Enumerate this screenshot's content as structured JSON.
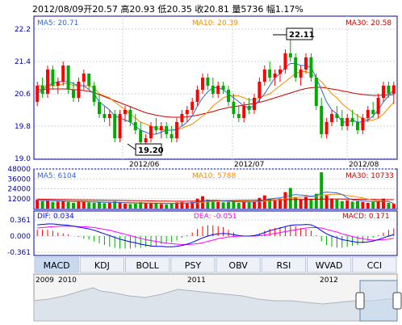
{
  "header": {
    "date": "2012/08/09",
    "open_label": "开",
    "open": "20.57",
    "high_label": "高",
    "high": "20.93",
    "low_label": "低",
    "low": "20.35",
    "close_label": "收",
    "close": "20.81",
    "volume_label": "量",
    "volume": "5736",
    "change_label": "幅",
    "change": "1.17%"
  },
  "price_panel": {
    "ma5_label": "MA5: 20.71",
    "ma10_label": "MA10: 20.39",
    "ma30_label": "MA30: 20.58",
    "y_ticks": [
      "22.2",
      "21.4",
      "20.6",
      "19.8",
      "19.0"
    ],
    "high_callout": "22.11",
    "low_callout": "19.20",
    "x_labels": [
      "2012/06",
      "2012/07",
      "2012/08"
    ]
  },
  "volume_panel": {
    "ma5_label": "MA5: 6104",
    "ma10_label": "MA10: 5788",
    "ma30_label": "MA30: 10733",
    "y_ticks": [
      "48000",
      "36000",
      "24000",
      "12000"
    ]
  },
  "macd_panel": {
    "dif_label": "DIF: 0.034",
    "dea_label": "DEA: -0.051",
    "macd_label": "MACD: 0.171",
    "y_ticks": [
      "0.361",
      "0.000",
      "-0.361"
    ]
  },
  "tabs": [
    "MACD",
    "KDJ",
    "BOLL",
    "PSY",
    "OBV",
    "RSI",
    "WVAD",
    "CCI"
  ],
  "active_tab": 0,
  "navigator": {
    "labels": [
      "2009",
      "2010",
      "2011",
      "2012"
    ]
  },
  "colors": {
    "up": "#ff0000",
    "down": "#00aa00",
    "ma5": "#3366cc",
    "ma10": "#ff8800",
    "ma30": "#cc0000",
    "dif": "#0000ff",
    "dea": "#ff00ff",
    "axis": "#0000aa"
  },
  "chart_data": [
    {
      "type": "candlestick",
      "title": "",
      "ylim": [
        19.0,
        22.2
      ],
      "candles": [
        {
          "o": 20.4,
          "h": 20.9,
          "l": 20.3,
          "c": 20.8
        },
        {
          "o": 20.8,
          "h": 21.0,
          "l": 20.5,
          "c": 20.6
        },
        {
          "o": 20.6,
          "h": 21.3,
          "l": 20.5,
          "c": 21.2
        },
        {
          "o": 21.2,
          "h": 21.3,
          "l": 20.7,
          "c": 20.8
        },
        {
          "o": 20.8,
          "h": 21.0,
          "l": 20.6,
          "c": 20.9
        },
        {
          "o": 20.9,
          "h": 21.4,
          "l": 20.8,
          "c": 21.3
        },
        {
          "o": 21.3,
          "h": 21.3,
          "l": 20.6,
          "c": 20.7
        },
        {
          "o": 20.7,
          "h": 20.9,
          "l": 20.4,
          "c": 20.5
        },
        {
          "o": 20.5,
          "h": 21.0,
          "l": 20.4,
          "c": 20.9
        },
        {
          "o": 20.9,
          "h": 21.2,
          "l": 20.7,
          "c": 21.1
        },
        {
          "o": 21.1,
          "h": 21.1,
          "l": 20.7,
          "c": 20.8
        },
        {
          "o": 20.8,
          "h": 20.9,
          "l": 20.3,
          "c": 20.4
        },
        {
          "o": 20.4,
          "h": 20.6,
          "l": 20.0,
          "c": 20.1
        },
        {
          "o": 20.1,
          "h": 20.3,
          "l": 19.9,
          "c": 20.0
        },
        {
          "o": 20.0,
          "h": 20.2,
          "l": 19.8,
          "c": 20.1
        },
        {
          "o": 20.1,
          "h": 20.2,
          "l": 19.4,
          "c": 19.5
        },
        {
          "o": 19.5,
          "h": 20.2,
          "l": 19.4,
          "c": 20.1
        },
        {
          "o": 20.1,
          "h": 20.3,
          "l": 19.9,
          "c": 20.2
        },
        {
          "o": 20.2,
          "h": 20.3,
          "l": 19.8,
          "c": 19.9
        },
        {
          "o": 19.9,
          "h": 20.1,
          "l": 19.6,
          "c": 19.7
        },
        {
          "o": 19.7,
          "h": 19.9,
          "l": 19.3,
          "c": 19.4
        },
        {
          "o": 19.4,
          "h": 19.6,
          "l": 19.2,
          "c": 19.5
        },
        {
          "o": 19.5,
          "h": 19.9,
          "l": 19.4,
          "c": 19.8
        },
        {
          "o": 19.8,
          "h": 20.0,
          "l": 19.6,
          "c": 19.7
        },
        {
          "o": 19.7,
          "h": 19.9,
          "l": 19.5,
          "c": 19.8
        },
        {
          "o": 19.8,
          "h": 19.9,
          "l": 19.5,
          "c": 19.6
        },
        {
          "o": 19.6,
          "h": 19.8,
          "l": 19.4,
          "c": 19.5
        },
        {
          "o": 19.5,
          "h": 20.0,
          "l": 19.4,
          "c": 19.9
        },
        {
          "o": 19.9,
          "h": 20.2,
          "l": 19.8,
          "c": 20.1
        },
        {
          "o": 20.1,
          "h": 20.3,
          "l": 19.9,
          "c": 20.2
        },
        {
          "o": 20.2,
          "h": 20.5,
          "l": 20.1,
          "c": 20.4
        },
        {
          "o": 20.4,
          "h": 20.8,
          "l": 20.3,
          "c": 20.7
        },
        {
          "o": 20.7,
          "h": 21.1,
          "l": 20.6,
          "c": 21.0
        },
        {
          "o": 21.0,
          "h": 21.1,
          "l": 20.7,
          "c": 20.8
        },
        {
          "o": 20.8,
          "h": 21.0,
          "l": 20.5,
          "c": 20.6
        },
        {
          "o": 20.6,
          "h": 20.9,
          "l": 20.5,
          "c": 20.8
        },
        {
          "o": 20.8,
          "h": 20.9,
          "l": 20.6,
          "c": 20.7
        },
        {
          "o": 20.7,
          "h": 20.8,
          "l": 20.3,
          "c": 20.4
        },
        {
          "o": 20.4,
          "h": 20.6,
          "l": 20.0,
          "c": 20.1
        },
        {
          "o": 20.1,
          "h": 20.3,
          "l": 19.9,
          "c": 20.0
        },
        {
          "o": 20.0,
          "h": 20.4,
          "l": 19.9,
          "c": 20.3
        },
        {
          "o": 20.3,
          "h": 20.5,
          "l": 20.1,
          "c": 20.2
        },
        {
          "o": 20.2,
          "h": 20.6,
          "l": 20.1,
          "c": 20.5
        },
        {
          "o": 20.5,
          "h": 21.0,
          "l": 20.4,
          "c": 20.9
        },
        {
          "o": 20.9,
          "h": 21.3,
          "l": 20.8,
          "c": 21.2
        },
        {
          "o": 21.2,
          "h": 21.4,
          "l": 20.9,
          "c": 21.0
        },
        {
          "o": 21.0,
          "h": 21.2,
          "l": 20.8,
          "c": 21.1
        },
        {
          "o": 21.1,
          "h": 21.3,
          "l": 20.9,
          "c": 21.2
        },
        {
          "o": 21.2,
          "h": 21.7,
          "l": 21.1,
          "c": 21.6
        },
        {
          "o": 21.6,
          "h": 22.11,
          "l": 21.4,
          "c": 21.5
        },
        {
          "o": 21.5,
          "h": 21.6,
          "l": 20.9,
          "c": 21.0
        },
        {
          "o": 21.0,
          "h": 21.3,
          "l": 20.8,
          "c": 21.2
        },
        {
          "o": 21.2,
          "h": 21.6,
          "l": 21.1,
          "c": 21.5
        },
        {
          "o": 21.5,
          "h": 21.6,
          "l": 20.9,
          "c": 21.0
        },
        {
          "o": 21.0,
          "h": 21.1,
          "l": 20.2,
          "c": 20.3
        },
        {
          "o": 20.3,
          "h": 20.5,
          "l": 19.5,
          "c": 19.6
        },
        {
          "o": 19.6,
          "h": 20.0,
          "l": 19.5,
          "c": 19.9
        },
        {
          "o": 19.9,
          "h": 20.2,
          "l": 19.8,
          "c": 20.1
        },
        {
          "o": 20.1,
          "h": 20.3,
          "l": 19.9,
          "c": 20.0
        },
        {
          "o": 20.0,
          "h": 20.2,
          "l": 19.7,
          "c": 19.8
        },
        {
          "o": 19.8,
          "h": 20.1,
          "l": 19.7,
          "c": 20.0
        },
        {
          "o": 20.0,
          "h": 20.2,
          "l": 19.8,
          "c": 19.9
        },
        {
          "o": 19.9,
          "h": 20.1,
          "l": 19.6,
          "c": 19.7
        },
        {
          "o": 19.7,
          "h": 20.1,
          "l": 19.6,
          "c": 20.0
        },
        {
          "o": 20.0,
          "h": 20.3,
          "l": 19.9,
          "c": 20.2
        },
        {
          "o": 20.2,
          "h": 20.4,
          "l": 20.0,
          "c": 20.1
        },
        {
          "o": 20.1,
          "h": 20.6,
          "l": 20.0,
          "c": 20.5
        },
        {
          "o": 20.5,
          "h": 20.9,
          "l": 20.4,
          "c": 20.8
        },
        {
          "o": 20.8,
          "h": 20.9,
          "l": 20.5,
          "c": 20.6
        },
        {
          "o": 20.6,
          "h": 20.9,
          "l": 20.35,
          "c": 20.81
        }
      ],
      "ma5": [
        20.6,
        20.7,
        20.8,
        20.85,
        20.9,
        20.9,
        20.9,
        20.85,
        20.8,
        20.8,
        20.7,
        20.6,
        20.4,
        20.3,
        20.2,
        20.05,
        20.0,
        19.95,
        19.9,
        19.8,
        19.7,
        19.65,
        19.6,
        19.6,
        19.65,
        19.7,
        19.7,
        19.72,
        19.8,
        19.9,
        20.05,
        20.3,
        20.5,
        20.65,
        20.75,
        20.75,
        20.7,
        20.6,
        20.5,
        20.4,
        20.3,
        20.25,
        20.3,
        20.45,
        20.6,
        20.8,
        21.0,
        21.1,
        21.25,
        21.35,
        21.35,
        21.3,
        21.3,
        21.25,
        21.0,
        20.7,
        20.4,
        20.2,
        20.1,
        19.9,
        19.9,
        19.95,
        19.9,
        19.9,
        19.95,
        20.05,
        20.2,
        20.4,
        20.55,
        20.71
      ],
      "ma10": [
        20.8,
        20.8,
        20.8,
        20.8,
        20.8,
        20.85,
        20.85,
        20.8,
        20.8,
        20.8,
        20.8,
        20.75,
        20.6,
        20.55,
        20.5,
        20.4,
        20.3,
        20.2,
        20.1,
        20.0,
        19.9,
        19.85,
        19.8,
        19.75,
        19.72,
        19.7,
        19.7,
        19.7,
        19.75,
        19.8,
        19.85,
        19.95,
        20.05,
        20.15,
        20.3,
        20.4,
        20.5,
        20.55,
        20.55,
        20.55,
        20.5,
        20.45,
        20.45,
        20.5,
        20.55,
        20.6,
        20.7,
        20.8,
        20.9,
        21.0,
        21.1,
        21.15,
        21.15,
        21.1,
        21.0,
        20.9,
        20.75,
        20.6,
        20.5,
        20.35,
        20.25,
        20.15,
        20.05,
        20.0,
        19.95,
        19.95,
        20.0,
        20.1,
        20.25,
        20.39
      ],
      "ma30": [
        20.7,
        20.7,
        20.72,
        20.72,
        20.72,
        20.72,
        20.72,
        20.7,
        20.7,
        20.68,
        20.66,
        20.63,
        20.58,
        20.53,
        20.48,
        20.43,
        20.38,
        20.33,
        20.28,
        20.23,
        20.18,
        20.13,
        20.1,
        20.07,
        20.05,
        20.03,
        20.02,
        20.02,
        20.02,
        20.03,
        20.05,
        20.07,
        20.1,
        20.13,
        20.16,
        20.2,
        20.23,
        20.26,
        20.28,
        20.3,
        20.32,
        20.34,
        20.36,
        20.39,
        20.42,
        20.46,
        20.5,
        20.54,
        20.58,
        20.62,
        20.66,
        20.7,
        20.73,
        20.75,
        20.76,
        20.76,
        20.74,
        20.72,
        20.7,
        20.67,
        20.65,
        20.62,
        20.6,
        20.58,
        20.57,
        20.56,
        20.56,
        20.57,
        20.57,
        20.58
      ]
    },
    {
      "type": "bar",
      "title": "",
      "ylim": [
        0,
        48000
      ],
      "values": [
        11000,
        9000,
        10000,
        8000,
        8500,
        9500,
        8000,
        7000,
        8500,
        9000,
        7500,
        7000,
        8000,
        6500,
        7000,
        9000,
        8000,
        6000,
        5500,
        6000,
        8000,
        7000,
        6500,
        6000,
        5500,
        5000,
        6000,
        7500,
        8000,
        7000,
        8000,
        12000,
        15000,
        11000,
        9000,
        8000,
        7500,
        8000,
        9000,
        7000,
        8000,
        7500,
        9000,
        13000,
        16000,
        12000,
        11000,
        12000,
        20000,
        25000,
        14000,
        11000,
        15000,
        12000,
        18000,
        44000,
        16000,
        12000,
        11000,
        9000,
        10000,
        8500,
        9000,
        8000,
        7000,
        8000,
        9000,
        12000,
        7000,
        5736
      ],
      "ma5": [
        10000,
        9800,
        9600,
        9400,
        9300,
        9000,
        8800,
        8600,
        8500,
        8400,
        8200,
        8000,
        7800,
        7600,
        7500,
        7400,
        7300,
        7100,
        6900,
        6800,
        6700,
        6600,
        6500,
        6400,
        6300,
        6200,
        6200,
        6300,
        6600,
        6800,
        7100,
        7800,
        8800,
        9700,
        10200,
        10000,
        9500,
        9000,
        8600,
        8200,
        8000,
        7900,
        8100,
        9000,
        10500,
        11800,
        12500,
        13000,
        14500,
        16000,
        17000,
        16500,
        16000,
        15000,
        15500,
        19000,
        20000,
        19500,
        19000,
        17000,
        13000,
        10500,
        9800,
        9200,
        8800,
        8500,
        8400,
        8700,
        8600,
        6104
      ],
      "ma10": [
        10500,
        10300,
        10100,
        9900,
        9700,
        9500,
        9300,
        9100,
        9000,
        8900,
        8700,
        8500,
        8300,
        8100,
        7900,
        7800,
        7600,
        7400,
        7300,
        7200,
        7100,
        7000,
        6900,
        6800,
        6700,
        6600,
        6500,
        6500,
        6600,
        6700,
        6900,
        7200,
        7600,
        8100,
        8500,
        8700,
        8800,
        8800,
        8900,
        8900,
        8800,
        8700,
        8600,
        8700,
        9000,
        9500,
        10100,
        10800,
        11800,
        12800,
        13500,
        14000,
        14300,
        14500,
        15000,
        16000,
        16800,
        17200,
        17500,
        17000,
        16000,
        15000,
        14000,
        13000,
        11500,
        10000,
        9400,
        9000,
        8800,
        5788
      ],
      "ma30": [
        11500,
        11400,
        11300,
        11200,
        11100,
        11000,
        10900,
        10800,
        10700,
        10600,
        10500,
        10400,
        10300,
        10200,
        10100,
        10000,
        9900,
        9800,
        9700,
        9600,
        9500,
        9400,
        9300,
        9200,
        9100,
        9000,
        8900,
        8900,
        8900,
        8900,
        9000,
        9100,
        9200,
        9300,
        9400,
        9500,
        9600,
        9700,
        9800,
        9900,
        10000,
        10100,
        10200,
        10300,
        10400,
        10500,
        10600,
        10700,
        10800,
        10900,
        11000,
        11100,
        11200,
        11300,
        11400,
        11500,
        11600,
        11700,
        11700,
        11600,
        11500,
        11400,
        11300,
        11200,
        11100,
        11000,
        10900,
        10850,
        10800,
        10733
      ]
    },
    {
      "type": "macd",
      "title": "",
      "ylim": [
        -0.361,
        0.361
      ],
      "dif": [
        0.25,
        0.26,
        0.27,
        0.27,
        0.26,
        0.25,
        0.24,
        0.22,
        0.2,
        0.18,
        0.16,
        0.13,
        0.09,
        0.05,
        0.01,
        -0.03,
        -0.07,
        -0.1,
        -0.13,
        -0.15,
        -0.18,
        -0.2,
        -0.22,
        -0.23,
        -0.23,
        -0.24,
        -0.24,
        -0.23,
        -0.21,
        -0.18,
        -0.14,
        -0.09,
        -0.04,
        0.0,
        0.03,
        0.05,
        0.06,
        0.05,
        0.03,
        0.01,
        0.0,
        0.0,
        0.01,
        0.04,
        0.08,
        0.12,
        0.15,
        0.18,
        0.21,
        0.24,
        0.25,
        0.25,
        0.26,
        0.25,
        0.2,
        0.12,
        0.05,
        0.0,
        -0.04,
        -0.08,
        -0.1,
        -0.12,
        -0.14,
        -0.14,
        -0.13,
        -0.11,
        -0.08,
        -0.04,
        0.0,
        0.034
      ],
      "dea": [
        0.18,
        0.19,
        0.2,
        0.21,
        0.22,
        0.22,
        0.22,
        0.22,
        0.21,
        0.21,
        0.2,
        0.19,
        0.17,
        0.15,
        0.13,
        0.1,
        0.07,
        0.04,
        0.01,
        -0.02,
        -0.05,
        -0.08,
        -0.1,
        -0.12,
        -0.14,
        -0.16,
        -0.17,
        -0.18,
        -0.19,
        -0.19,
        -0.18,
        -0.17,
        -0.15,
        -0.12,
        -0.09,
        -0.06,
        -0.04,
        -0.02,
        -0.01,
        0.0,
        0.0,
        0.0,
        0.0,
        0.01,
        0.02,
        0.04,
        0.06,
        0.08,
        0.1,
        0.12,
        0.14,
        0.16,
        0.18,
        0.19,
        0.19,
        0.18,
        0.15,
        0.12,
        0.09,
        0.05,
        0.02,
        -0.01,
        -0.04,
        -0.06,
        -0.08,
        -0.09,
        -0.09,
        -0.08,
        -0.07,
        -0.051
      ],
      "macd": [
        0.14,
        0.14,
        0.14,
        0.12,
        0.08,
        0.06,
        0.04,
        0.0,
        -0.02,
        -0.06,
        -0.08,
        -0.12,
        -0.16,
        -0.2,
        -0.24,
        -0.26,
        -0.28,
        -0.28,
        -0.28,
        -0.26,
        -0.26,
        -0.24,
        -0.24,
        -0.22,
        -0.18,
        -0.16,
        -0.14,
        -0.1,
        -0.04,
        0.02,
        0.08,
        0.16,
        0.22,
        0.24,
        0.24,
        0.22,
        0.2,
        0.14,
        0.08,
        0.02,
        0.0,
        0.0,
        0.02,
        0.06,
        0.12,
        0.16,
        0.18,
        0.2,
        0.22,
        0.24,
        0.22,
        0.18,
        0.16,
        0.12,
        0.02,
        -0.12,
        -0.2,
        -0.24,
        -0.26,
        -0.26,
        -0.24,
        -0.22,
        -0.2,
        -0.16,
        -0.1,
        -0.04,
        0.02,
        0.08,
        0.14,
        0.171
      ]
    }
  ]
}
